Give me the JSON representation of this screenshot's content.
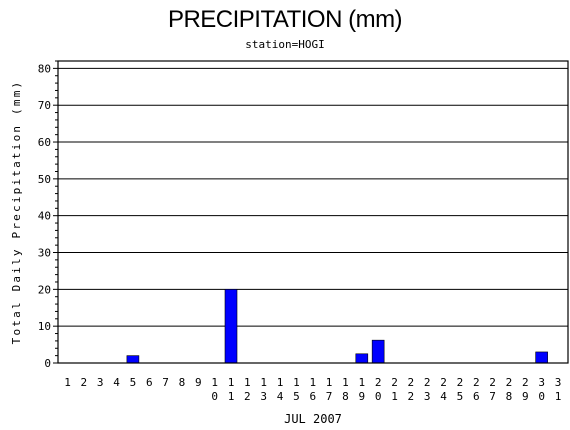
{
  "chart_data": {
    "type": "bar",
    "title": "PRECIPITATION (mm)",
    "subtitle": "station=HOGI",
    "xlabel": "JUL 2007",
    "ylabel": "Total Daily Precipitation (mm)",
    "ylim": [
      0,
      82
    ],
    "yticks": [
      0,
      10,
      20,
      30,
      40,
      50,
      60,
      70,
      80
    ],
    "grid": true,
    "bar_color": "#0000ff",
    "categories": [
      "1",
      "2",
      "3",
      "4",
      "5",
      "6",
      "7",
      "8",
      "9",
      "10",
      "11",
      "12",
      "13",
      "14",
      "15",
      "16",
      "17",
      "18",
      "19",
      "20",
      "21",
      "22",
      "23",
      "24",
      "25",
      "26",
      "27",
      "28",
      "29",
      "30",
      "31"
    ],
    "values": [
      0,
      0,
      0,
      0,
      2,
      0,
      0,
      0,
      0,
      0,
      20,
      0,
      0,
      0,
      0,
      0,
      0,
      0,
      2.5,
      6.2,
      0,
      0,
      0,
      0,
      0,
      0,
      0,
      0,
      0,
      3,
      0
    ]
  }
}
